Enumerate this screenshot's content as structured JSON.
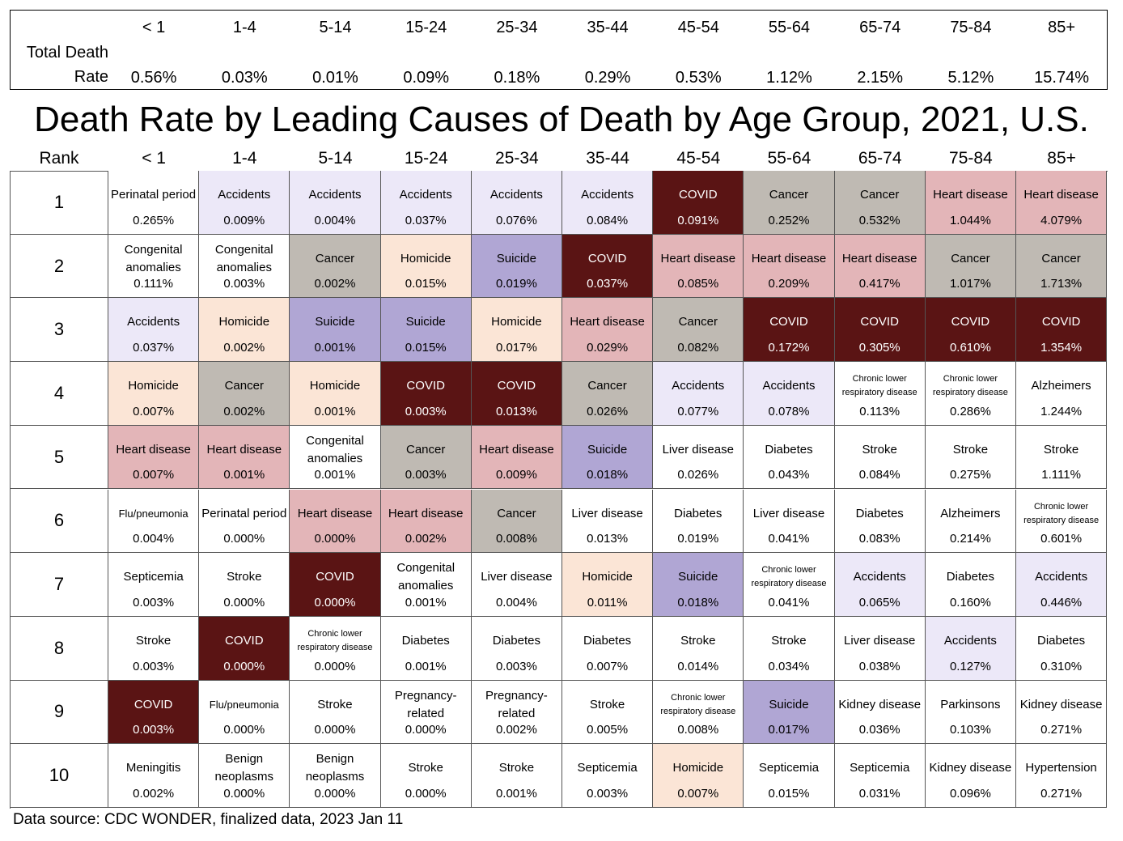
{
  "top": {
    "label": "Total Death Rate",
    "rates": [
      "0.56%",
      "0.03%",
      "0.01%",
      "0.09%",
      "0.18%",
      "0.29%",
      "0.53%",
      "1.12%",
      "2.15%",
      "5.12%",
      "15.74%"
    ]
  },
  "age_groups": [
    "< 1",
    "1-4",
    "5-14",
    "15-24",
    "25-34",
    "35-44",
    "45-54",
    "55-64",
    "65-74",
    "75-84",
    "85+"
  ],
  "title": "Death Rate by Leading Causes of Death by Age Group, 2021, U.S.",
  "rank_label": "Rank",
  "colors": {
    "Accidents": "#ece8f8",
    "Cancer": "#bfbab3",
    "COVID": "#5a1414",
    "Heart disease": "#e3b5b8",
    "Homicide": "#fbe5d6",
    "Suicide": "#b0a6d4"
  },
  "table": {
    "rows": [
      {
        "rank": "1",
        "cells": [
          [
            "Perinatal period",
            "0.265%"
          ],
          [
            "Accidents",
            "0.009%"
          ],
          [
            "Accidents",
            "0.004%"
          ],
          [
            "Accidents",
            "0.037%"
          ],
          [
            "Accidents",
            "0.076%"
          ],
          [
            "Accidents",
            "0.084%"
          ],
          [
            "COVID",
            "0.091%"
          ],
          [
            "Cancer",
            "0.252%"
          ],
          [
            "Cancer",
            "0.532%"
          ],
          [
            "Heart disease",
            "1.044%"
          ],
          [
            "Heart disease",
            "4.079%"
          ]
        ]
      },
      {
        "rank": "2",
        "cells": [
          [
            "Congenital anomalies",
            "0.111%"
          ],
          [
            "Congenital anomalies",
            "0.003%"
          ],
          [
            "Cancer",
            "0.002%"
          ],
          [
            "Homicide",
            "0.015%"
          ],
          [
            "Suicide",
            "0.019%"
          ],
          [
            "COVID",
            "0.037%"
          ],
          [
            "Heart disease",
            "0.085%"
          ],
          [
            "Heart disease",
            "0.209%"
          ],
          [
            "Heart disease",
            "0.417%"
          ],
          [
            "Cancer",
            "1.017%"
          ],
          [
            "Cancer",
            "1.713%"
          ]
        ]
      },
      {
        "rank": "3",
        "cells": [
          [
            "Accidents",
            "0.037%"
          ],
          [
            "Homicide",
            "0.002%"
          ],
          [
            "Suicide",
            "0.001%"
          ],
          [
            "Suicide",
            "0.015%"
          ],
          [
            "Homicide",
            "0.017%"
          ],
          [
            "Heart disease",
            "0.029%"
          ],
          [
            "Cancer",
            "0.082%"
          ],
          [
            "COVID",
            "0.172%"
          ],
          [
            "COVID",
            "0.305%"
          ],
          [
            "COVID",
            "0.610%"
          ],
          [
            "COVID",
            "1.354%"
          ]
        ]
      },
      {
        "rank": "4",
        "cells": [
          [
            "Homicide",
            "0.007%"
          ],
          [
            "Cancer",
            "0.002%"
          ],
          [
            "Homicide",
            "0.001%"
          ],
          [
            "COVID",
            "0.003%"
          ],
          [
            "COVID",
            "0.013%"
          ],
          [
            "Cancer",
            "0.026%"
          ],
          [
            "Accidents",
            "0.077%"
          ],
          [
            "Accidents",
            "0.078%"
          ],
          [
            "Chronic lower respiratory disease",
            "0.113%"
          ],
          [
            "Chronic lower respiratory disease",
            "0.286%"
          ],
          [
            "Alzheimers",
            "1.244%"
          ]
        ]
      },
      {
        "rank": "5",
        "cells": [
          [
            "Heart disease",
            "0.007%"
          ],
          [
            "Heart disease",
            "0.001%"
          ],
          [
            "Congenital anomalies",
            "0.001%"
          ],
          [
            "Cancer",
            "0.003%"
          ],
          [
            "Heart disease",
            "0.009%"
          ],
          [
            "Suicide",
            "0.018%"
          ],
          [
            "Liver disease",
            "0.026%"
          ],
          [
            "Diabetes",
            "0.043%"
          ],
          [
            "Stroke",
            "0.084%"
          ],
          [
            "Stroke",
            "0.275%"
          ],
          [
            "Stroke",
            "1.111%"
          ]
        ]
      },
      {
        "rank": "6",
        "cells": [
          [
            "Flu/pneumonia",
            "0.004%"
          ],
          [
            "Perinatal period",
            "0.000%"
          ],
          [
            "Heart disease",
            "0.000%"
          ],
          [
            "Heart disease",
            "0.002%"
          ],
          [
            "Cancer",
            "0.008%"
          ],
          [
            "Liver disease",
            "0.013%"
          ],
          [
            "Diabetes",
            "0.019%"
          ],
          [
            "Liver disease",
            "0.041%"
          ],
          [
            "Diabetes",
            "0.083%"
          ],
          [
            "Alzheimers",
            "0.214%"
          ],
          [
            "Chronic lower respiratory disease",
            "0.601%"
          ]
        ]
      },
      {
        "rank": "7",
        "cells": [
          [
            "Septicemia",
            "0.003%"
          ],
          [
            "Stroke",
            "0.000%"
          ],
          [
            "COVID",
            "0.000%"
          ],
          [
            "Congenital anomalies",
            "0.001%"
          ],
          [
            "Liver disease",
            "0.004%"
          ],
          [
            "Homicide",
            "0.011%"
          ],
          [
            "Suicide",
            "0.018%"
          ],
          [
            "Chronic lower respiratory disease",
            "0.041%"
          ],
          [
            "Accidents",
            "0.065%"
          ],
          [
            "Diabetes",
            "0.160%"
          ],
          [
            "Accidents",
            "0.446%"
          ]
        ]
      },
      {
        "rank": "8",
        "cells": [
          [
            "Stroke",
            "0.003%"
          ],
          [
            "COVID",
            "0.000%"
          ],
          [
            "Chronic lower respiratory disease",
            "0.000%"
          ],
          [
            "Diabetes",
            "0.001%"
          ],
          [
            "Diabetes",
            "0.003%"
          ],
          [
            "Diabetes",
            "0.007%"
          ],
          [
            "Stroke",
            "0.014%"
          ],
          [
            "Stroke",
            "0.034%"
          ],
          [
            "Liver disease",
            "0.038%"
          ],
          [
            "Accidents",
            "0.127%"
          ],
          [
            "Diabetes",
            "0.310%"
          ]
        ]
      },
      {
        "rank": "9",
        "cells": [
          [
            "COVID",
            "0.003%"
          ],
          [
            "Flu/pneumonia",
            "0.000%"
          ],
          [
            "Stroke",
            "0.000%"
          ],
          [
            "Pregnancy-related",
            "0.000%"
          ],
          [
            "Pregnancy-related",
            "0.002%"
          ],
          [
            "Stroke",
            "0.005%"
          ],
          [
            "Chronic lower respiratory disease",
            "0.008%"
          ],
          [
            "Suicide",
            "0.017%"
          ],
          [
            "Kidney disease",
            "0.036%"
          ],
          [
            "Parkinsons",
            "0.103%"
          ],
          [
            "Kidney disease",
            "0.271%"
          ]
        ]
      },
      {
        "rank": "10",
        "cells": [
          [
            "Meningitis",
            "0.002%"
          ],
          [
            "Benign neoplasms",
            "0.000%"
          ],
          [
            "Benign neoplasms",
            "0.000%"
          ],
          [
            "Stroke",
            "0.000%"
          ],
          [
            "Stroke",
            "0.001%"
          ],
          [
            "Septicemia",
            "0.003%"
          ],
          [
            "Homicide",
            "0.007%"
          ],
          [
            "Septicemia",
            "0.015%"
          ],
          [
            "Septicemia",
            "0.031%"
          ],
          [
            "Kidney disease",
            "0.096%"
          ],
          [
            "Hypertension",
            "0.271%"
          ]
        ]
      }
    ]
  },
  "source": "Data source: CDC WONDER, finalized data, 2023 Jan 11"
}
